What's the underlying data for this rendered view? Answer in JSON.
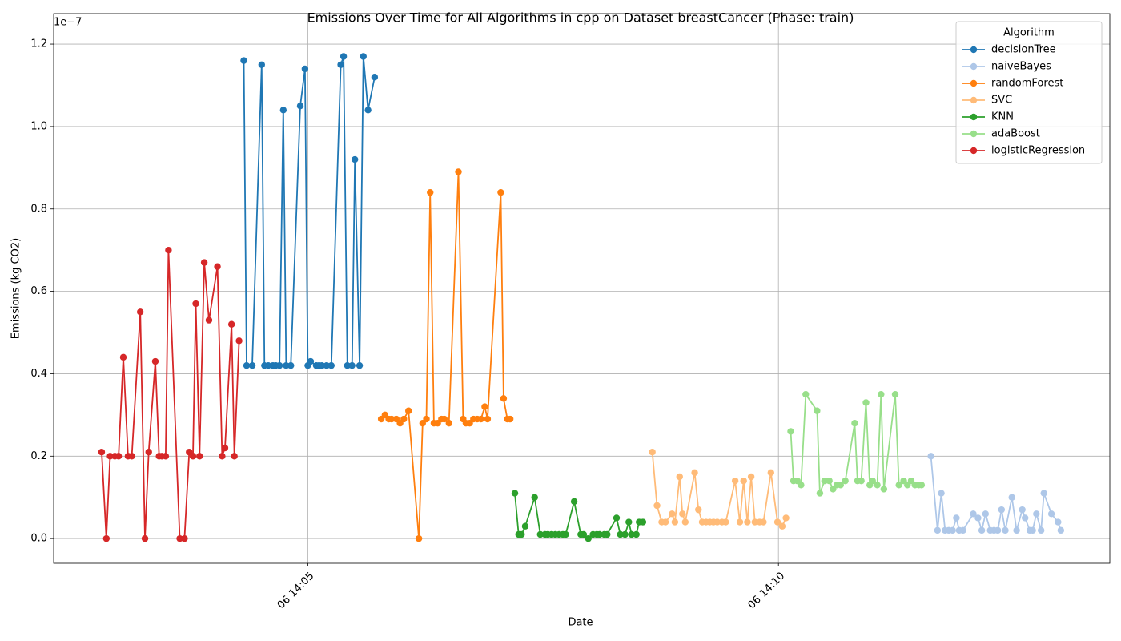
{
  "chart_data": {
    "type": "line",
    "title": "Emissions Over Time for All Algorithms in cpp on Dataset breastCancer (Phase: train)",
    "x_label": "Date",
    "y_label": "Emissions (kg CO2)",
    "y_offset_label": "1e−7",
    "legend_title": "Algorithm",
    "legend": "upper right",
    "grid": true,
    "marker": "o",
    "xlim": [
      2.3,
      13.52
    ],
    "xticks": [
      {
        "value": 5,
        "label": "06 14:05"
      },
      {
        "value": 10,
        "label": "06 14:10"
      }
    ],
    "ylim": [
      -0.06,
      1.274
    ],
    "yticks": [
      {
        "value": 0,
        "label": "0.0"
      },
      0.2,
      0.4,
      0.6,
      0.8,
      {
        "value": 1,
        "label": "1.0"
      },
      1.2
    ],
    "series": [
      {
        "name": "decisionTree",
        "color": "#1f77b4",
        "x": [
          4.32,
          4.35,
          4.41,
          4.51,
          4.54,
          4.58,
          4.63,
          4.66,
          4.7,
          4.74,
          4.77,
          4.82,
          4.92,
          4.97,
          5.0,
          5.03,
          5.09,
          5.12,
          5.15,
          5.2,
          5.25,
          5.35,
          5.38,
          5.42,
          5.47,
          5.5,
          5.55,
          5.59,
          5.64,
          5.71
        ],
        "values": [
          1.16,
          0.42,
          0.42,
          1.15,
          0.42,
          0.42,
          0.42,
          0.42,
          0.42,
          1.04,
          0.42,
          0.42,
          1.05,
          1.14,
          0.42,
          0.43,
          0.42,
          0.42,
          0.42,
          0.42,
          0.42,
          1.15,
          1.17,
          0.42,
          0.42,
          0.92,
          0.42,
          1.17,
          1.04,
          1.12
        ]
      },
      {
        "name": "naiveBayes",
        "color": "#aec7e8",
        "x": [
          11.62,
          11.69,
          11.73,
          11.77,
          11.81,
          11.85,
          11.89,
          11.92,
          11.96,
          12.07,
          12.12,
          12.16,
          12.2,
          12.25,
          12.29,
          12.33,
          12.37,
          12.41,
          12.48,
          12.53,
          12.59,
          12.62,
          12.67,
          12.7,
          12.74,
          12.79,
          12.82,
          12.9,
          12.97,
          13.0
        ],
        "values": [
          0.2,
          0.02,
          0.11,
          0.02,
          0.02,
          0.02,
          0.05,
          0.02,
          0.02,
          0.06,
          0.05,
          0.02,
          0.06,
          0.02,
          0.02,
          0.02,
          0.07,
          0.02,
          0.1,
          0.02,
          0.07,
          0.05,
          0.02,
          0.02,
          0.06,
          0.02,
          0.11,
          0.06,
          0.04,
          0.02
        ]
      },
      {
        "name": "randomForest",
        "color": "#ff7f0e",
        "x": [
          5.78,
          5.82,
          5.86,
          5.89,
          5.94,
          5.98,
          6.02,
          6.07,
          6.18,
          6.22,
          6.26,
          6.3,
          6.34,
          6.38,
          6.42,
          6.45,
          6.5,
          6.6,
          6.65,
          6.68,
          6.72,
          6.76,
          6.8,
          6.84,
          6.88,
          6.91,
          7.05,
          7.08,
          7.12,
          7.15
        ],
        "values": [
          0.29,
          0.3,
          0.29,
          0.29,
          0.29,
          0.28,
          0.29,
          0.31,
          0.0,
          0.28,
          0.29,
          0.84,
          0.28,
          0.28,
          0.29,
          0.29,
          0.28,
          0.89,
          0.29,
          0.28,
          0.28,
          0.29,
          0.29,
          0.29,
          0.32,
          0.29,
          0.84,
          0.34,
          0.29,
          0.29
        ]
      },
      {
        "name": "SVC",
        "color": "#ffbb78",
        "x": [
          8.66,
          8.71,
          8.76,
          8.8,
          8.87,
          8.9,
          8.95,
          8.98,
          9.01,
          9.11,
          9.15,
          9.19,
          9.23,
          9.27,
          9.31,
          9.35,
          9.4,
          9.44,
          9.54,
          9.59,
          9.63,
          9.67,
          9.71,
          9.75,
          9.8,
          9.84,
          9.92,
          9.99,
          10.04,
          10.08
        ],
        "values": [
          0.21,
          0.08,
          0.04,
          0.04,
          0.06,
          0.04,
          0.15,
          0.06,
          0.04,
          0.16,
          0.07,
          0.04,
          0.04,
          0.04,
          0.04,
          0.04,
          0.04,
          0.04,
          0.14,
          0.04,
          0.14,
          0.04,
          0.15,
          0.04,
          0.04,
          0.04,
          0.16,
          0.04,
          0.03,
          0.05
        ]
      },
      {
        "name": "KNN",
        "color": "#2ca02c",
        "x": [
          7.2,
          7.24,
          7.27,
          7.31,
          7.41,
          7.47,
          7.52,
          7.55,
          7.59,
          7.63,
          7.67,
          7.71,
          7.74,
          7.83,
          7.9,
          7.93,
          7.98,
          8.03,
          8.07,
          8.1,
          8.15,
          8.18,
          8.28,
          8.32,
          8.37,
          8.41,
          8.44,
          8.49,
          8.52,
          8.56
        ],
        "values": [
          0.11,
          0.01,
          0.01,
          0.03,
          0.1,
          0.01,
          0.01,
          0.01,
          0.01,
          0.01,
          0.01,
          0.01,
          0.01,
          0.09,
          0.01,
          0.01,
          0.0,
          0.01,
          0.01,
          0.01,
          0.01,
          0.01,
          0.05,
          0.01,
          0.01,
          0.04,
          0.01,
          0.01,
          0.04,
          0.04
        ]
      },
      {
        "name": "adaBoost",
        "color": "#98df8a",
        "x": [
          10.13,
          10.16,
          10.2,
          10.24,
          10.29,
          10.41,
          10.44,
          10.49,
          10.54,
          10.58,
          10.62,
          10.66,
          10.71,
          10.81,
          10.84,
          10.88,
          10.93,
          10.97,
          11.0,
          11.05,
          11.09,
          11.12,
          11.24,
          11.28,
          11.33,
          11.37,
          11.41,
          11.45,
          11.49,
          11.52
        ],
        "values": [
          0.26,
          0.14,
          0.14,
          0.13,
          0.35,
          0.31,
          0.11,
          0.14,
          0.14,
          0.12,
          0.13,
          0.13,
          0.14,
          0.28,
          0.14,
          0.14,
          0.33,
          0.13,
          0.14,
          0.13,
          0.35,
          0.12,
          0.35,
          0.13,
          0.14,
          0.13,
          0.14,
          0.13,
          0.13,
          0.13
        ]
      },
      {
        "name": "logisticRegression",
        "color": "#d62728",
        "x": [
          2.81,
          2.86,
          2.9,
          2.95,
          2.99,
          3.04,
          3.09,
          3.13,
          3.22,
          3.27,
          3.31,
          3.38,
          3.42,
          3.45,
          3.49,
          3.52,
          3.64,
          3.69,
          3.74,
          3.78,
          3.81,
          3.85,
          3.9,
          3.95,
          4.04,
          4.09,
          4.12,
          4.19,
          4.22,
          4.27
        ],
        "values": [
          0.21,
          0.0,
          0.2,
          0.2,
          0.2,
          0.44,
          0.2,
          0.2,
          0.55,
          0.0,
          0.21,
          0.43,
          0.2,
          0.2,
          0.2,
          0.7,
          0.0,
          0.0,
          0.21,
          0.2,
          0.57,
          0.2,
          0.67,
          0.53,
          0.66,
          0.2,
          0.22,
          0.52,
          0.2,
          0.48
        ]
      }
    ]
  }
}
